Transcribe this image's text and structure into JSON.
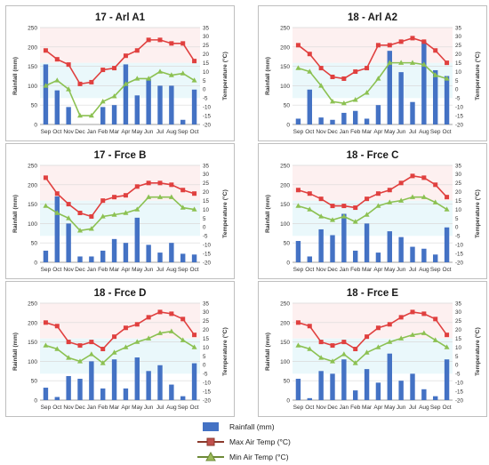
{
  "chart_data": [
    {
      "type": "bar+line",
      "title": "17 - Arl A1",
      "categories": [
        "Sep",
        "Oct",
        "Nov",
        "Dec",
        "Jan",
        "Feb",
        "Mar",
        "Apr",
        "May",
        "Jun",
        "Jul",
        "Aug",
        "Sep",
        "Oct"
      ],
      "ylabel": "Rainfall (mm)",
      "ylim": [
        0,
        250
      ],
      "y_ticks": [
        "0",
        "50",
        "100",
        "150",
        "200",
        "250"
      ],
      "y2label": "Temperature (°C)",
      "y2lim": [
        -20,
        35
      ],
      "y2_ticks": [
        "-20",
        "-15",
        "-10",
        "-5",
        "0",
        "5",
        "10",
        "15",
        "20",
        "25",
        "30",
        "35"
      ],
      "rainfall": [
        155,
        88,
        45,
        0,
        0,
        45,
        50,
        155,
        75,
        118,
        100,
        100,
        12,
        90
      ],
      "max_temp": [
        22,
        17,
        14,
        3,
        4,
        11,
        12,
        19,
        22,
        28,
        28,
        26,
        26,
        16
      ],
      "min_temp": [
        2,
        5,
        0,
        -15,
        -15,
        -7,
        -4,
        3,
        6,
        6,
        10,
        8,
        9,
        5
      ]
    },
    {
      "type": "bar+line",
      "title": "18 - Arl A2",
      "categories": [
        "Sep",
        "Oct",
        "Nov",
        "Dec",
        "Jan",
        "Feb",
        "Mar",
        "Apr",
        "May",
        "Jun",
        "Jul",
        "Aug",
        "Sep",
        "Oct"
      ],
      "ylabel": "Rainfall (mm)",
      "ylim": [
        0,
        250
      ],
      "y_ticks": [
        "0",
        "50",
        "100",
        "150",
        "200",
        "250"
      ],
      "y2label": "Temperature (°C)",
      "y2lim": [
        -20,
        35
      ],
      "y2_ticks": [
        "-20",
        "-15",
        "-10",
        "-5",
        "0",
        "5",
        "10",
        "15",
        "20",
        "25",
        "30",
        "35"
      ],
      "rainfall": [
        15,
        90,
        18,
        12,
        30,
        35,
        15,
        50,
        190,
        135,
        58,
        215,
        140,
        125
      ],
      "max_temp": [
        25,
        20,
        12,
        7,
        6,
        10,
        12,
        25,
        25,
        27,
        29,
        27,
        22,
        15
      ],
      "min_temp": [
        12,
        10,
        2,
        -7,
        -8,
        -6,
        -2,
        6,
        15,
        15,
        15,
        14,
        8,
        6
      ]
    },
    {
      "type": "bar+line",
      "title": "17 - Frce B",
      "categories": [
        "Sep",
        "Oct",
        "Nov",
        "Dec",
        "Jan",
        "Feb",
        "Mar",
        "Apr",
        "May",
        "Jun",
        "Jul",
        "Aug",
        "Sep",
        "Oct"
      ],
      "ylabel": "Rainfall (mm)",
      "ylim": [
        0,
        250
      ],
      "y_ticks": [
        "0",
        "50",
        "100",
        "150",
        "200",
        "250"
      ],
      "y2label": "Temperature (°C)",
      "y2lim": [
        -20,
        35
      ],
      "y2_ticks": [
        "-20",
        "-15",
        "-10",
        "-5",
        "0",
        "5",
        "10",
        "15",
        "20",
        "25",
        "30",
        "35"
      ],
      "rainfall": [
        30,
        170,
        100,
        15,
        15,
        30,
        60,
        50,
        115,
        45,
        25,
        50,
        22,
        20
      ],
      "max_temp": [
        28,
        19,
        13,
        8,
        6,
        15,
        17,
        18,
        23,
        25,
        25,
        24,
        21,
        19
      ],
      "min_temp": [
        12,
        8,
        5,
        -2,
        -1,
        6,
        7,
        8,
        10,
        17,
        17,
        17,
        11,
        10
      ]
    },
    {
      "type": "bar+line",
      "title": "18 - Frce C",
      "categories": [
        "Sep",
        "Oct",
        "Nov",
        "Dec",
        "Jan",
        "Feb",
        "Mar",
        "Apr",
        "May",
        "Jun",
        "Jul",
        "Aug",
        "Sep",
        "Oct"
      ],
      "ylabel": "Rainfall (mm)",
      "ylim": [
        0,
        250
      ],
      "y_ticks": [
        "0",
        "50",
        "100",
        "150",
        "200",
        "250"
      ],
      "y2label": "Temperature (°C)",
      "y2lim": [
        -20,
        35
      ],
      "y2_ticks": [
        "-20",
        "-15",
        "-10",
        "-5",
        "0",
        "5",
        "10",
        "15",
        "20",
        "25",
        "30",
        "35"
      ],
      "rainfall": [
        55,
        15,
        85,
        70,
        125,
        30,
        100,
        25,
        80,
        65,
        40,
        35,
        20,
        90
      ],
      "max_temp": [
        21,
        19,
        16,
        12,
        12,
        11,
        16,
        19,
        21,
        25,
        29,
        28,
        24,
        17
      ],
      "min_temp": [
        12,
        10,
        6,
        4,
        6,
        3,
        7,
        12,
        14,
        15,
        17,
        17,
        14,
        10
      ]
    },
    {
      "type": "bar+line",
      "title": "18 - Frce D",
      "categories": [
        "Sep",
        "Oct",
        "Nov",
        "Dec",
        "Jan",
        "Feb",
        "Mar",
        "Apr",
        "May",
        "Jun",
        "Jul",
        "Aug",
        "Sep",
        "Oct"
      ],
      "ylabel": "Rainfall (mm)",
      "ylim": [
        0,
        250
      ],
      "y_ticks": [
        "0",
        "50",
        "100",
        "150",
        "200",
        "250"
      ],
      "y2label": "Temperature (°C)",
      "y2lim": [
        -20,
        35
      ],
      "y2_ticks": [
        "-20",
        "-15",
        "-10",
        "-5",
        "0",
        "5",
        "10",
        "15",
        "20",
        "25",
        "30",
        "35"
      ],
      "rainfall": [
        32,
        8,
        62,
        55,
        100,
        30,
        105,
        30,
        110,
        75,
        90,
        40,
        10,
        95
      ],
      "max_temp": [
        24,
        22,
        13,
        11,
        13,
        9,
        16,
        21,
        23,
        27,
        30,
        29,
        26,
        17
      ],
      "min_temp": [
        11,
        9,
        4,
        2,
        6,
        1,
        7,
        10,
        13,
        15,
        18,
        19,
        14,
        10
      ]
    },
    {
      "type": "bar+line",
      "title": "18 - Frce E",
      "categories": [
        "Sep",
        "Oct",
        "Nov",
        "Dec",
        "Jan",
        "Feb",
        "Mar",
        "Apr",
        "May",
        "Jun",
        "Jul",
        "Aug",
        "Sep",
        "Oct"
      ],
      "ylabel": "Rainfall (mm)",
      "ylim": [
        0,
        250
      ],
      "y_ticks": [
        "0",
        "50",
        "100",
        "150",
        "200",
        "250"
      ],
      "y2label": "Temperature (°C)",
      "y2lim": [
        -20,
        35
      ],
      "y2_ticks": [
        "-20",
        "-15",
        "-10",
        "-5",
        "0",
        "5",
        "10",
        "15",
        "20",
        "25",
        "30",
        "35"
      ],
      "rainfall": [
        55,
        5,
        75,
        68,
        105,
        25,
        80,
        45,
        120,
        50,
        68,
        28,
        10,
        105
      ],
      "max_temp": [
        24,
        22,
        13,
        11,
        13,
        9,
        16,
        21,
        23,
        27,
        30,
        29,
        26,
        17
      ],
      "min_temp": [
        11,
        9,
        4,
        2,
        6,
        1,
        7,
        10,
        13,
        15,
        17,
        18,
        14,
        10
      ]
    }
  ],
  "legend": [
    {
      "label": "Rainfall (mm)",
      "kind": "bar",
      "color": "#4472c4"
    },
    {
      "label": "Max Air Temp (°C)",
      "kind": "line-square",
      "color": "#c0504d"
    },
    {
      "label": "Min Air Temp (°C)",
      "kind": "line-triangle",
      "color": "#9bbb59"
    }
  ],
  "colors": {
    "rainfall": "#4472c4",
    "max_temp": "#e0403f",
    "min_temp": "#8cc152"
  }
}
